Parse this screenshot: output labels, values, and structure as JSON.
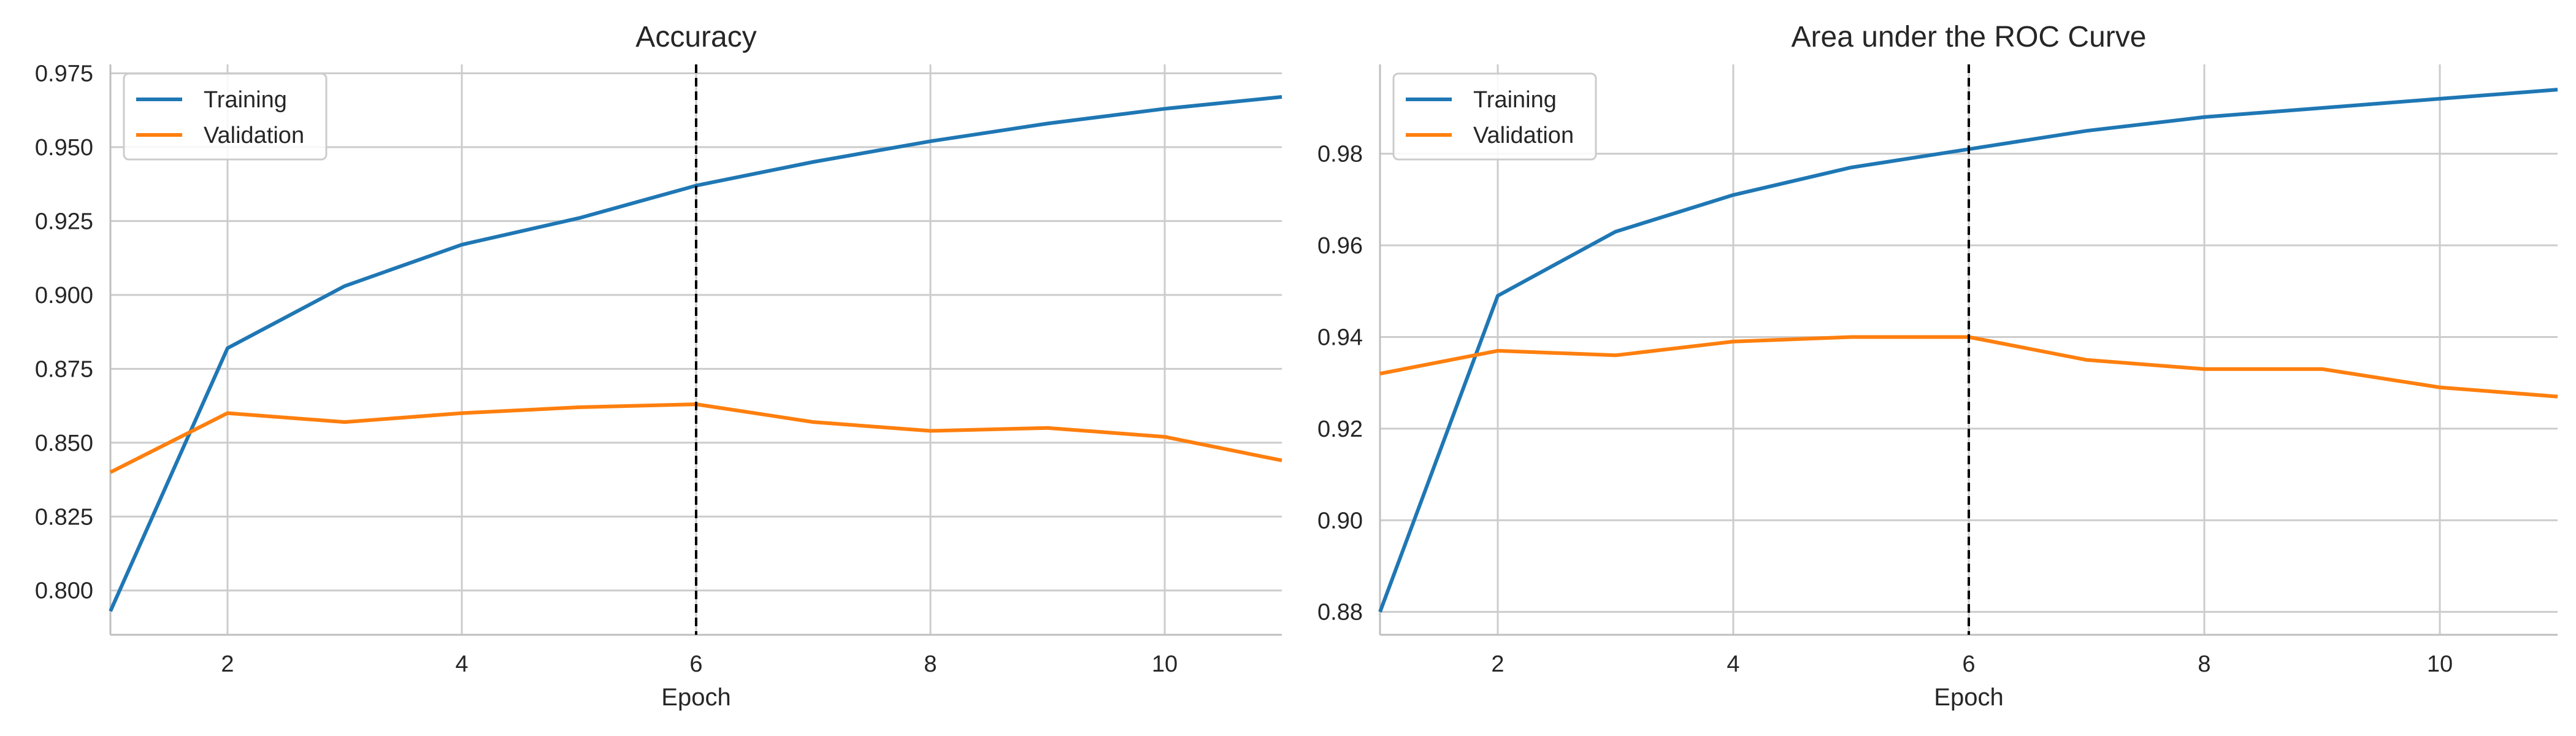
{
  "chart_data": [
    {
      "type": "line",
      "title": "Accuracy",
      "xlabel": "Epoch",
      "ylabel": "",
      "xlim": [
        1,
        11
      ],
      "ylim": [
        0.785,
        0.978
      ],
      "xticks": [
        2,
        4,
        6,
        8,
        10
      ],
      "yticks": [
        0.8,
        0.825,
        0.85,
        0.875,
        0.9,
        0.925,
        0.95,
        0.975
      ],
      "ytick_decimals": 3,
      "grid": true,
      "legend": "top-left",
      "vline_x": 6,
      "x": [
        1,
        2,
        3,
        4,
        5,
        6,
        7,
        8,
        9,
        10,
        11
      ],
      "series": [
        {
          "name": "Training",
          "color": "#1f77b4",
          "values": [
            0.793,
            0.882,
            0.903,
            0.917,
            0.926,
            0.937,
            0.945,
            0.952,
            0.958,
            0.963,
            0.967
          ]
        },
        {
          "name": "Validation",
          "color": "#ff7f0e",
          "values": [
            0.84,
            0.86,
            0.857,
            0.86,
            0.862,
            0.863,
            0.857,
            0.854,
            0.855,
            0.852,
            0.844
          ]
        }
      ]
    },
    {
      "type": "line",
      "title": "Area under the ROC Curve",
      "xlabel": "Epoch",
      "ylabel": "",
      "xlim": [
        1,
        11
      ],
      "ylim": [
        0.875,
        0.9995
      ],
      "xticks": [
        2,
        4,
        6,
        8,
        10
      ],
      "yticks": [
        0.88,
        0.9,
        0.92,
        0.94,
        0.96,
        0.98
      ],
      "ytick_decimals": 2,
      "grid": true,
      "legend": "top-left",
      "vline_x": 6,
      "x": [
        1,
        2,
        3,
        4,
        5,
        6,
        7,
        8,
        9,
        10,
        11
      ],
      "series": [
        {
          "name": "Training",
          "color": "#1f77b4",
          "values": [
            0.88,
            0.949,
            0.963,
            0.971,
            0.977,
            0.981,
            0.985,
            0.988,
            0.99,
            0.992,
            0.994
          ]
        },
        {
          "name": "Validation",
          "color": "#ff7f0e",
          "values": [
            0.932,
            0.937,
            0.936,
            0.939,
            0.94,
            0.94,
            0.935,
            0.933,
            0.933,
            0.929,
            0.927
          ]
        }
      ]
    }
  ]
}
